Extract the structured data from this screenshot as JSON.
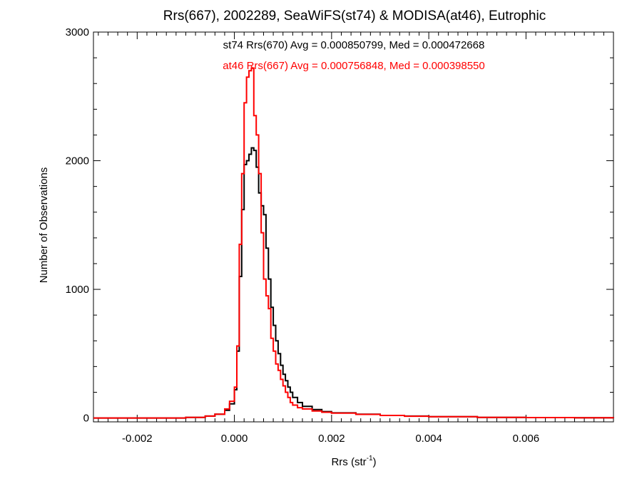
{
  "chart_data": {
    "type": "line",
    "title": "Rrs(667), 2002289, SeaWiFS(st74) & MODISA(at46), Eutrophic",
    "xlabel_main": "Rrs (str",
    "xlabel_sup": "-1",
    "xlabel_close": ")",
    "ylabel": "Number of Observations",
    "xlim": [
      -0.0029,
      0.0078
    ],
    "ylim": [
      -30,
      3000
    ],
    "xticks": [
      {
        "value": -0.002,
        "label": "-0.002"
      },
      {
        "value": 0.0,
        "label": "0.000"
      },
      {
        "value": 0.002,
        "label": "0.002"
      },
      {
        "value": 0.004,
        "label": "0.004"
      },
      {
        "value": 0.006,
        "label": "0.006"
      }
    ],
    "yticks": [
      {
        "value": 0,
        "label": "0"
      },
      {
        "value": 1000,
        "label": "1000"
      },
      {
        "value": 2000,
        "label": "2000"
      },
      {
        "value": 3000,
        "label": "3000"
      }
    ],
    "annotations": [
      {
        "text": "st74 Rrs(670) Avg = 0.000850799, Med = 0.000472668",
        "color": "#000000"
      },
      {
        "text": "at46 Rrs(667) Avg = 0.000756848, Med = 0.000398550",
        "color": "#ff0000"
      }
    ],
    "series": [
      {
        "color": "#000000",
        "style": "step",
        "x": [
          -0.0029,
          -0.001,
          -0.0006,
          -0.0004,
          -0.0002,
          -0.0001,
          0.0,
          5e-05,
          0.0001,
          0.00015,
          0.0002,
          0.00025,
          0.0003,
          0.00035,
          0.0004,
          0.00045,
          0.0005,
          0.00055,
          0.0006,
          0.00065,
          0.0007,
          0.00075,
          0.0008,
          0.00085,
          0.0009,
          0.00095,
          0.001,
          0.00105,
          0.0011,
          0.00115,
          0.0012,
          0.0013,
          0.0014,
          0.0016,
          0.0018,
          0.002,
          0.0025,
          0.003,
          0.0035,
          0.004,
          0.005,
          0.006,
          0.007,
          0.0078
        ],
        "y": [
          0,
          5,
          15,
          30,
          60,
          110,
          220,
          520,
          1100,
          1620,
          1970,
          2000,
          2050,
          2100,
          2080,
          1950,
          1750,
          1650,
          1580,
          1320,
          1080,
          860,
          720,
          600,
          500,
          410,
          340,
          290,
          240,
          200,
          160,
          120,
          90,
          65,
          50,
          40,
          30,
          20,
          15,
          10,
          5,
          3,
          2,
          0
        ]
      },
      {
        "color": "#ff0000",
        "style": "step",
        "x": [
          -0.0029,
          -0.001,
          -0.0006,
          -0.0004,
          -0.0002,
          -0.0001,
          0.0,
          5e-05,
          0.0001,
          0.00015,
          0.0002,
          0.00025,
          0.0003,
          0.00035,
          0.0004,
          0.00045,
          0.0005,
          0.00055,
          0.0006,
          0.00065,
          0.0007,
          0.00075,
          0.0008,
          0.00085,
          0.0009,
          0.00095,
          0.001,
          0.00105,
          0.0011,
          0.00115,
          0.0012,
          0.0013,
          0.0014,
          0.0016,
          0.0018,
          0.002,
          0.0025,
          0.003,
          0.0035,
          0.004,
          0.005,
          0.006,
          0.007,
          0.0078
        ],
        "y": [
          0,
          5,
          15,
          30,
          70,
          130,
          240,
          560,
          1350,
          1900,
          2450,
          2650,
          2700,
          2720,
          2350,
          2200,
          1900,
          1440,
          1080,
          950,
          850,
          620,
          520,
          420,
          370,
          300,
          250,
          200,
          160,
          120,
          100,
          80,
          70,
          55,
          45,
          38,
          28,
          20,
          14,
          10,
          5,
          3,
          2,
          0
        ]
      }
    ]
  }
}
